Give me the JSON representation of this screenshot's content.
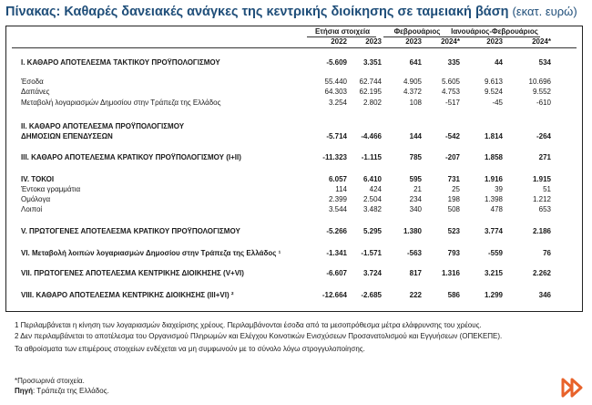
{
  "title": "Πίνακας: Καθαρές δανειακές ανάγκες της κεντρικής διοίκησης σε ταμειακή βάση",
  "title_unit": "(εκατ. ευρώ)",
  "headers": {
    "group_annual": "Ετήσια στοιχεία",
    "group_feb": "Φεβρουάριος",
    "group_janfeb": "Ιανουάριος-Φεβρουάριος",
    "years": [
      "2022",
      "2023",
      "2023",
      "2024*",
      "2023",
      "2024*"
    ]
  },
  "rows": [
    {
      "label": "Ι. ΚΑΘΑΡΟ ΑΠΟΤΕΛΕΣΜΑ ΤΑΚΤΙΚΟΥ ΠΡΟΫΠΟΛΟΓΙΣΜΟΥ",
      "values": [
        "-5.609",
        "3.351",
        "641",
        "335",
        "44",
        "534"
      ],
      "bold": true
    },
    {
      "label": "Έσοδα",
      "values": [
        "55.440",
        "62.744",
        "4.905",
        "5.605",
        "9.613",
        "10.696"
      ],
      "bold": false
    },
    {
      "label": "Δαπάνες",
      "values": [
        "64.303",
        "62.195",
        "4.372",
        "4.753",
        "9.524",
        "9.552"
      ],
      "bold": false
    },
    {
      "label": "Μεταβολή λογαριασμών Δημοσίου στην Τράπεζα της Ελλάδος",
      "values": [
        "3.254",
        "2.802",
        "108",
        "-517",
        "-45",
        "-610"
      ],
      "bold": false
    },
    {
      "label": "ΙΙ. ΚΑΘΑΡΟ ΑΠΟΤΕΛΕΣΜΑ ΠΡΟΫΠΟΛΟΓΙΣΜΟΥ",
      "values": [
        "",
        "",
        "",
        "",
        "",
        ""
      ],
      "bold": true
    },
    {
      "label": "ΔΗΜΟΣΙΩΝ ΕΠΕΝΔΥΣΕΩΝ",
      "values": [
        "-5.714",
        "-4.466",
        "144",
        "-542",
        "1.814",
        "-264"
      ],
      "bold": true
    },
    {
      "label": "ΙΙΙ. ΚΑΘΑΡΟ ΑΠΟΤΕΛΕΣΜΑ ΚΡΑΤΙΚΟΥ ΠΡΟΫΠΟΛΟΓΙΣΜΟΥ (Ι+ΙΙ)",
      "values": [
        "-11.323",
        "-1.115",
        "785",
        "-207",
        "1.858",
        "271"
      ],
      "bold": true
    },
    {
      "label": "IV. ΤΟΚΟΙ",
      "values": [
        "6.057",
        "6.410",
        "595",
        "731",
        "1.916",
        "1.915"
      ],
      "bold": true
    },
    {
      "label": "Έντοκα γραμμάτια",
      "values": [
        "114",
        "424",
        "21",
        "25",
        "39",
        "51"
      ],
      "bold": false
    },
    {
      "label": "Ομόλογα",
      "values": [
        "2.399",
        "2.504",
        "234",
        "198",
        "1.398",
        "1.212"
      ],
      "bold": false
    },
    {
      "label": "Λοιποί",
      "values": [
        "3.544",
        "3.482",
        "340",
        "508",
        "478",
        "653"
      ],
      "bold": false
    },
    {
      "label": "V. ΠΡΩΤΟΓΕΝΕΣ ΑΠΟΤΕΛΕΣΜΑ ΚΡΑΤΙΚΟΥ ΠΡΟΫΠΟΛΟΓΙΣΜΟΥ",
      "values": [
        "-5.266",
        "5.295",
        "1.380",
        "523",
        "3.774",
        "2.186"
      ],
      "bold": true
    },
    {
      "label": "VI. Μεταβολή λοιπών λογαριασμών Δημοσίου στην Τράπεζα της Ελλάδος ¹",
      "values": [
        "-1.341",
        "-1.571",
        "-563",
        "793",
        "-559",
        "76"
      ],
      "bold": true
    },
    {
      "label": "VII. ΠΡΩΤΟΓΕΝΕΣ ΑΠΟΤΕΛΕΣΜΑ ΚΕΝΤΡΙΚΗΣ ΔΙΟΙΚΗΣΗΣ (V+VI)",
      "values": [
        "-6.607",
        "3.724",
        "817",
        "1.316",
        "3.215",
        "2.262"
      ],
      "bold": true
    },
    {
      "label": "VIII. ΚΑΘΑΡΟ ΑΠΟΤΕΛΕΣΜΑ ΚΕΝΤΡΙΚΗΣ ΔΙΟΙΚΗΣΗΣ (III+VI) ²",
      "values": [
        "-12.664",
        "-2.685",
        "222",
        "586",
        "1.299",
        "346"
      ],
      "bold": true
    }
  ],
  "notes": [
    "1 Περιλαμβάνεται η κίνηση των λογαριασμών διαχείρισης χρέους. Περιλαμβάνονται έσοδα από τα μεσοπρόθεσμα μέτρα ελάφρυνσης του χρέους.",
    "2 Δεν περιλαμβάνεται το αποτέλεσμα του Οργανισμού Πληρωμών και Ελέγχου Κοινοτικών Ενισχύσεων Προσανατολισμού και Εγγυήσεων (ΟΠΕΚΕΠΕ).",
    "Τα αθροίσματα των επιμέρους στοιχείων ενδέχεται να μη συμφωνούν με το σύνολο λόγω στρογγυλοποίησης."
  ],
  "provisional_note": "*Προσωρινά στοιχεία.",
  "source_label": "Πηγή",
  "source_text": ": Τράπεζα της Ελλάδος.",
  "colors": {
    "title": "#1f4e79",
    "logo": "#e8632b"
  },
  "logo_icon": "fast-forward-logo-icon"
}
